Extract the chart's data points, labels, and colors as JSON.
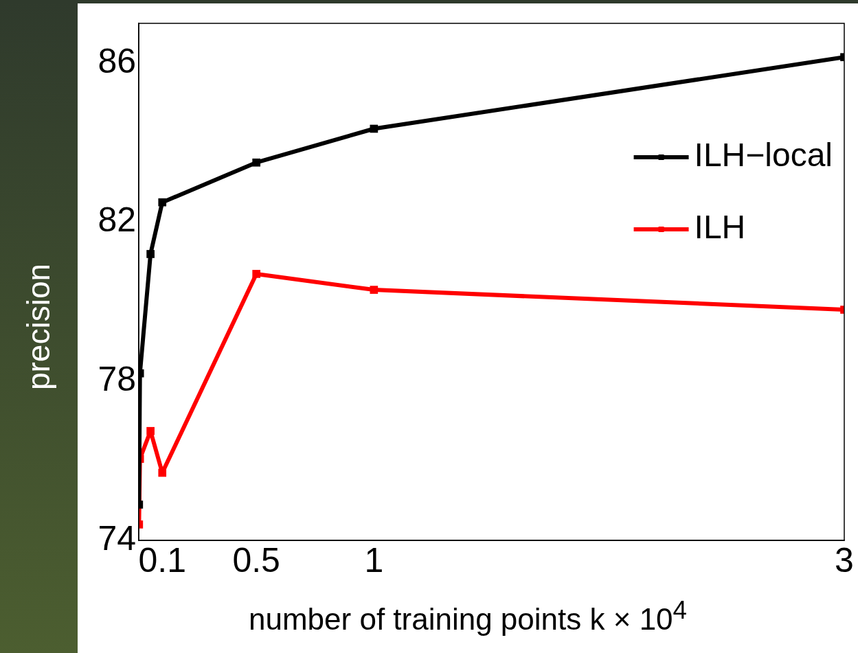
{
  "chart_data": {
    "type": "line",
    "xlabel": "number of training points k × 10$^{4}$",
    "ylabel": "precision",
    "xlim": [
      0,
      3
    ],
    "xticks": [
      0.1,
      0.5,
      1,
      3
    ],
    "ylim": [
      74,
      87
    ],
    "yticks": [
      74,
      78,
      82,
      86
    ],
    "legend": "top right",
    "marker": "square",
    "line_style": "solid",
    "grid": false,
    "series": [
      {
        "name": "ILH−local",
        "color": "#000000",
        "x": [
          0.001,
          0.005,
          0.05,
          0.1,
          0.5,
          1,
          3
        ],
        "values": [
          74.9,
          78.2,
          81.2,
          82.5,
          83.5,
          84.35,
          86.15
        ]
      },
      {
        "name": "ILH",
        "color": "#ff0000",
        "x": [
          0.001,
          0.005,
          0.05,
          0.1,
          0.5,
          1,
          3
        ],
        "values": [
          74.4,
          76.05,
          76.75,
          75.7,
          80.7,
          80.3,
          79.8
        ]
      }
    ]
  }
}
